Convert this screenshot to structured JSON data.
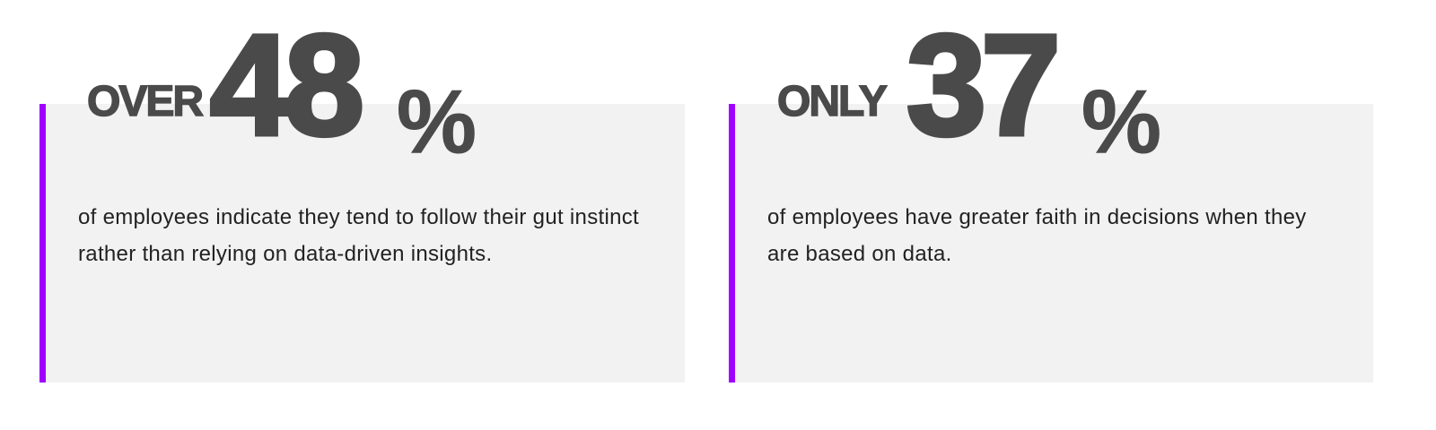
{
  "accent_color": "#a100ff",
  "card_background": "#f2f2f2",
  "stats": [
    {
      "qualifier": "OVER",
      "number": "48",
      "percent_sign": "%",
      "description": "of employees indicate they tend to follow their gut instinct rather than relying on data-driven insights."
    },
    {
      "qualifier": "ONLY",
      "number": "37",
      "percent_sign": "%",
      "description": "of employees have greater faith in decisions when they are based on data."
    }
  ]
}
